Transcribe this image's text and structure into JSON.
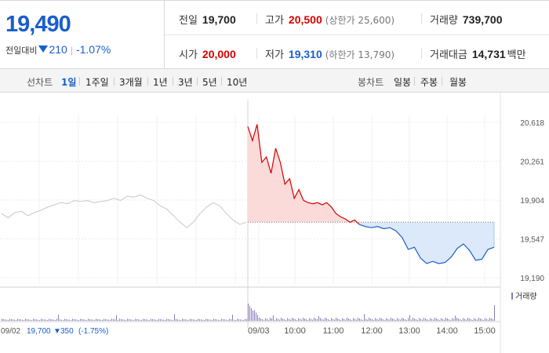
{
  "summary": {
    "price": "19,490",
    "change_label": "전일대비",
    "change_value": "210",
    "change_pct": "-1.07%"
  },
  "stats": {
    "prev_close": {
      "label": "전일",
      "value": "19,700"
    },
    "high": {
      "label": "고가",
      "value": "20,500",
      "sub": "(상한가 25,600)"
    },
    "volume": {
      "label": "거래량",
      "value": "739,700"
    },
    "open": {
      "label": "시가",
      "value": "20,000"
    },
    "low": {
      "label": "저가",
      "value": "19,310",
      "sub": "(하한가 13,790)"
    },
    "turnover": {
      "label": "거래대금",
      "value": "14,731",
      "unit": "백만"
    }
  },
  "tabs": {
    "line_label": "선차트",
    "line_items": [
      "1일",
      "1주일",
      "3개월",
      "1년",
      "3년",
      "5년",
      "10년"
    ],
    "active": "1일",
    "candle_label": "봉차트",
    "candle_items": [
      "일봉",
      "주봉",
      "월봉"
    ]
  },
  "colors": {
    "up": "#d60000",
    "down": "#1a5ecc",
    "prev_day": "#c8c8c8",
    "up_fill": "#fbdada",
    "down_fill": "#dce9fb",
    "volume": "#8b7bb8"
  },
  "chart_data": {
    "type": "line",
    "y_ticks": [
      "20,618",
      "20,261",
      "19,904",
      "19,547",
      "19,190"
    ],
    "y_range": [
      19190,
      20618
    ],
    "baseline": 19700,
    "x_ticks": [
      "09/03",
      "10:00",
      "11:00",
      "12:00",
      "13:00",
      "14:00",
      "15:00"
    ],
    "prev_day_label": "09/02",
    "prev_day_close": "19,700",
    "prev_day_change": "350",
    "prev_day_pct": "(-1.75%)",
    "volume_legend": "거래량",
    "series": [
      {
        "values": [
          19780,
          19740,
          19790,
          19800,
          19760,
          19790,
          19810,
          19840,
          19860,
          19880,
          19870,
          19900,
          19890,
          19900,
          19880,
          19890,
          19900,
          19920,
          19900,
          19940,
          19930,
          19950,
          19920,
          19900,
          19850,
          19820,
          19760,
          19700,
          19650,
          19700,
          19780,
          19840,
          19880,
          19850,
          19780,
          19720,
          19680,
          19700
        ]
      },
      {
        "values": [
          20580,
          20450,
          20600,
          20250,
          20300,
          20150,
          20380,
          20250,
          20050,
          20100,
          19920,
          20000,
          19900,
          19880,
          19870,
          19880,
          19860,
          19880,
          19840,
          19780,
          19750,
          19730,
          19700,
          19720,
          19680
        ]
      },
      {
        "values": [
          19680,
          19660,
          19650,
          19660,
          19640,
          19650,
          19620,
          19560,
          19450,
          19470,
          19370,
          19320,
          19340,
          19320,
          19330,
          19380,
          19460,
          19500,
          19440,
          19350,
          19360,
          19450,
          19470
        ]
      }
    ]
  }
}
